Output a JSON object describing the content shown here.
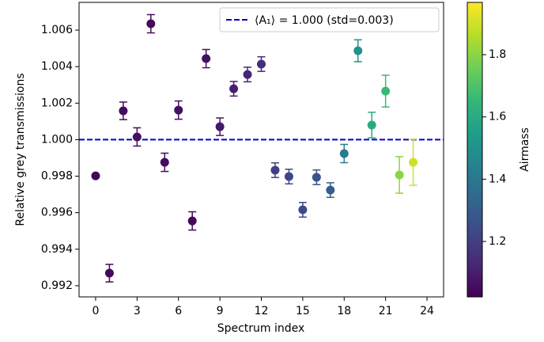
{
  "chart_data": {
    "type": "errorscatter",
    "xlabel": "Spectrum index",
    "ylabel": "Relative grey transmissions",
    "x": [
      0,
      1,
      2,
      3,
      4,
      5,
      6,
      7,
      8,
      9,
      10,
      11,
      12,
      13,
      14,
      15,
      16,
      17,
      18,
      19,
      20,
      21,
      22,
      23
    ],
    "values": [
      0.99802,
      0.99269,
      1.00158,
      1.00015,
      1.00635,
      0.99876,
      1.00162,
      0.99555,
      1.00444,
      1.00071,
      1.00279,
      1.00357,
      1.00414,
      0.99833,
      0.99798,
      0.99616,
      0.99794,
      0.99724,
      0.99924,
      1.00487,
      1.0008,
      1.00266,
      0.99807,
      0.99876
    ],
    "errors": [
      0,
      0.00048,
      0.00048,
      0.0005,
      0.0005,
      0.0005,
      0.0005,
      0.0005,
      0.0005,
      0.00048,
      0.0004,
      0.0004,
      0.0004,
      0.0004,
      0.0004,
      0.0004,
      0.0004,
      0.0004,
      0.0005,
      0.0006,
      0.0007,
      0.00087,
      0.001,
      0.00126
    ],
    "airmass": [
      1.03,
      1.04,
      1.05,
      1.06,
      1.05,
      1.05,
      1.06,
      1.04,
      1.06,
      1.08,
      1.1,
      1.12,
      1.14,
      1.2,
      1.22,
      1.24,
      1.27,
      1.3,
      1.42,
      1.5,
      1.6,
      1.66,
      1.8,
      1.9
    ],
    "xlim": [
      -1.2,
      25.2
    ],
    "ylim": [
      0.99139,
      1.00752
    ],
    "xticks": [
      0,
      3,
      6,
      9,
      12,
      15,
      18,
      21,
      24
    ],
    "yticks": [
      0.992,
      0.994,
      0.996,
      0.998,
      {
        "value": 1,
        "label": "1.000"
      },
      1.002,
      1.004,
      1.006
    ],
    "hline": {
      "value": 1,
      "color": "#0000cc",
      "label": "⟨A₁⟩ = 1.000 (std=0.003)"
    },
    "legend": "upper right",
    "colorbar": {
      "label": "Airmass",
      "lim": [
        1.022,
        1.968
      ],
      "ticks": [
        1.2,
        1.4,
        1.6,
        1.8
      ],
      "colormap": [
        "#440154",
        "#482878",
        "#3e4989",
        "#31688e",
        "#26828e",
        "#1f9e89",
        "#35b779",
        "#6ece58",
        "#b5de2b",
        "#fde725"
      ]
    }
  }
}
